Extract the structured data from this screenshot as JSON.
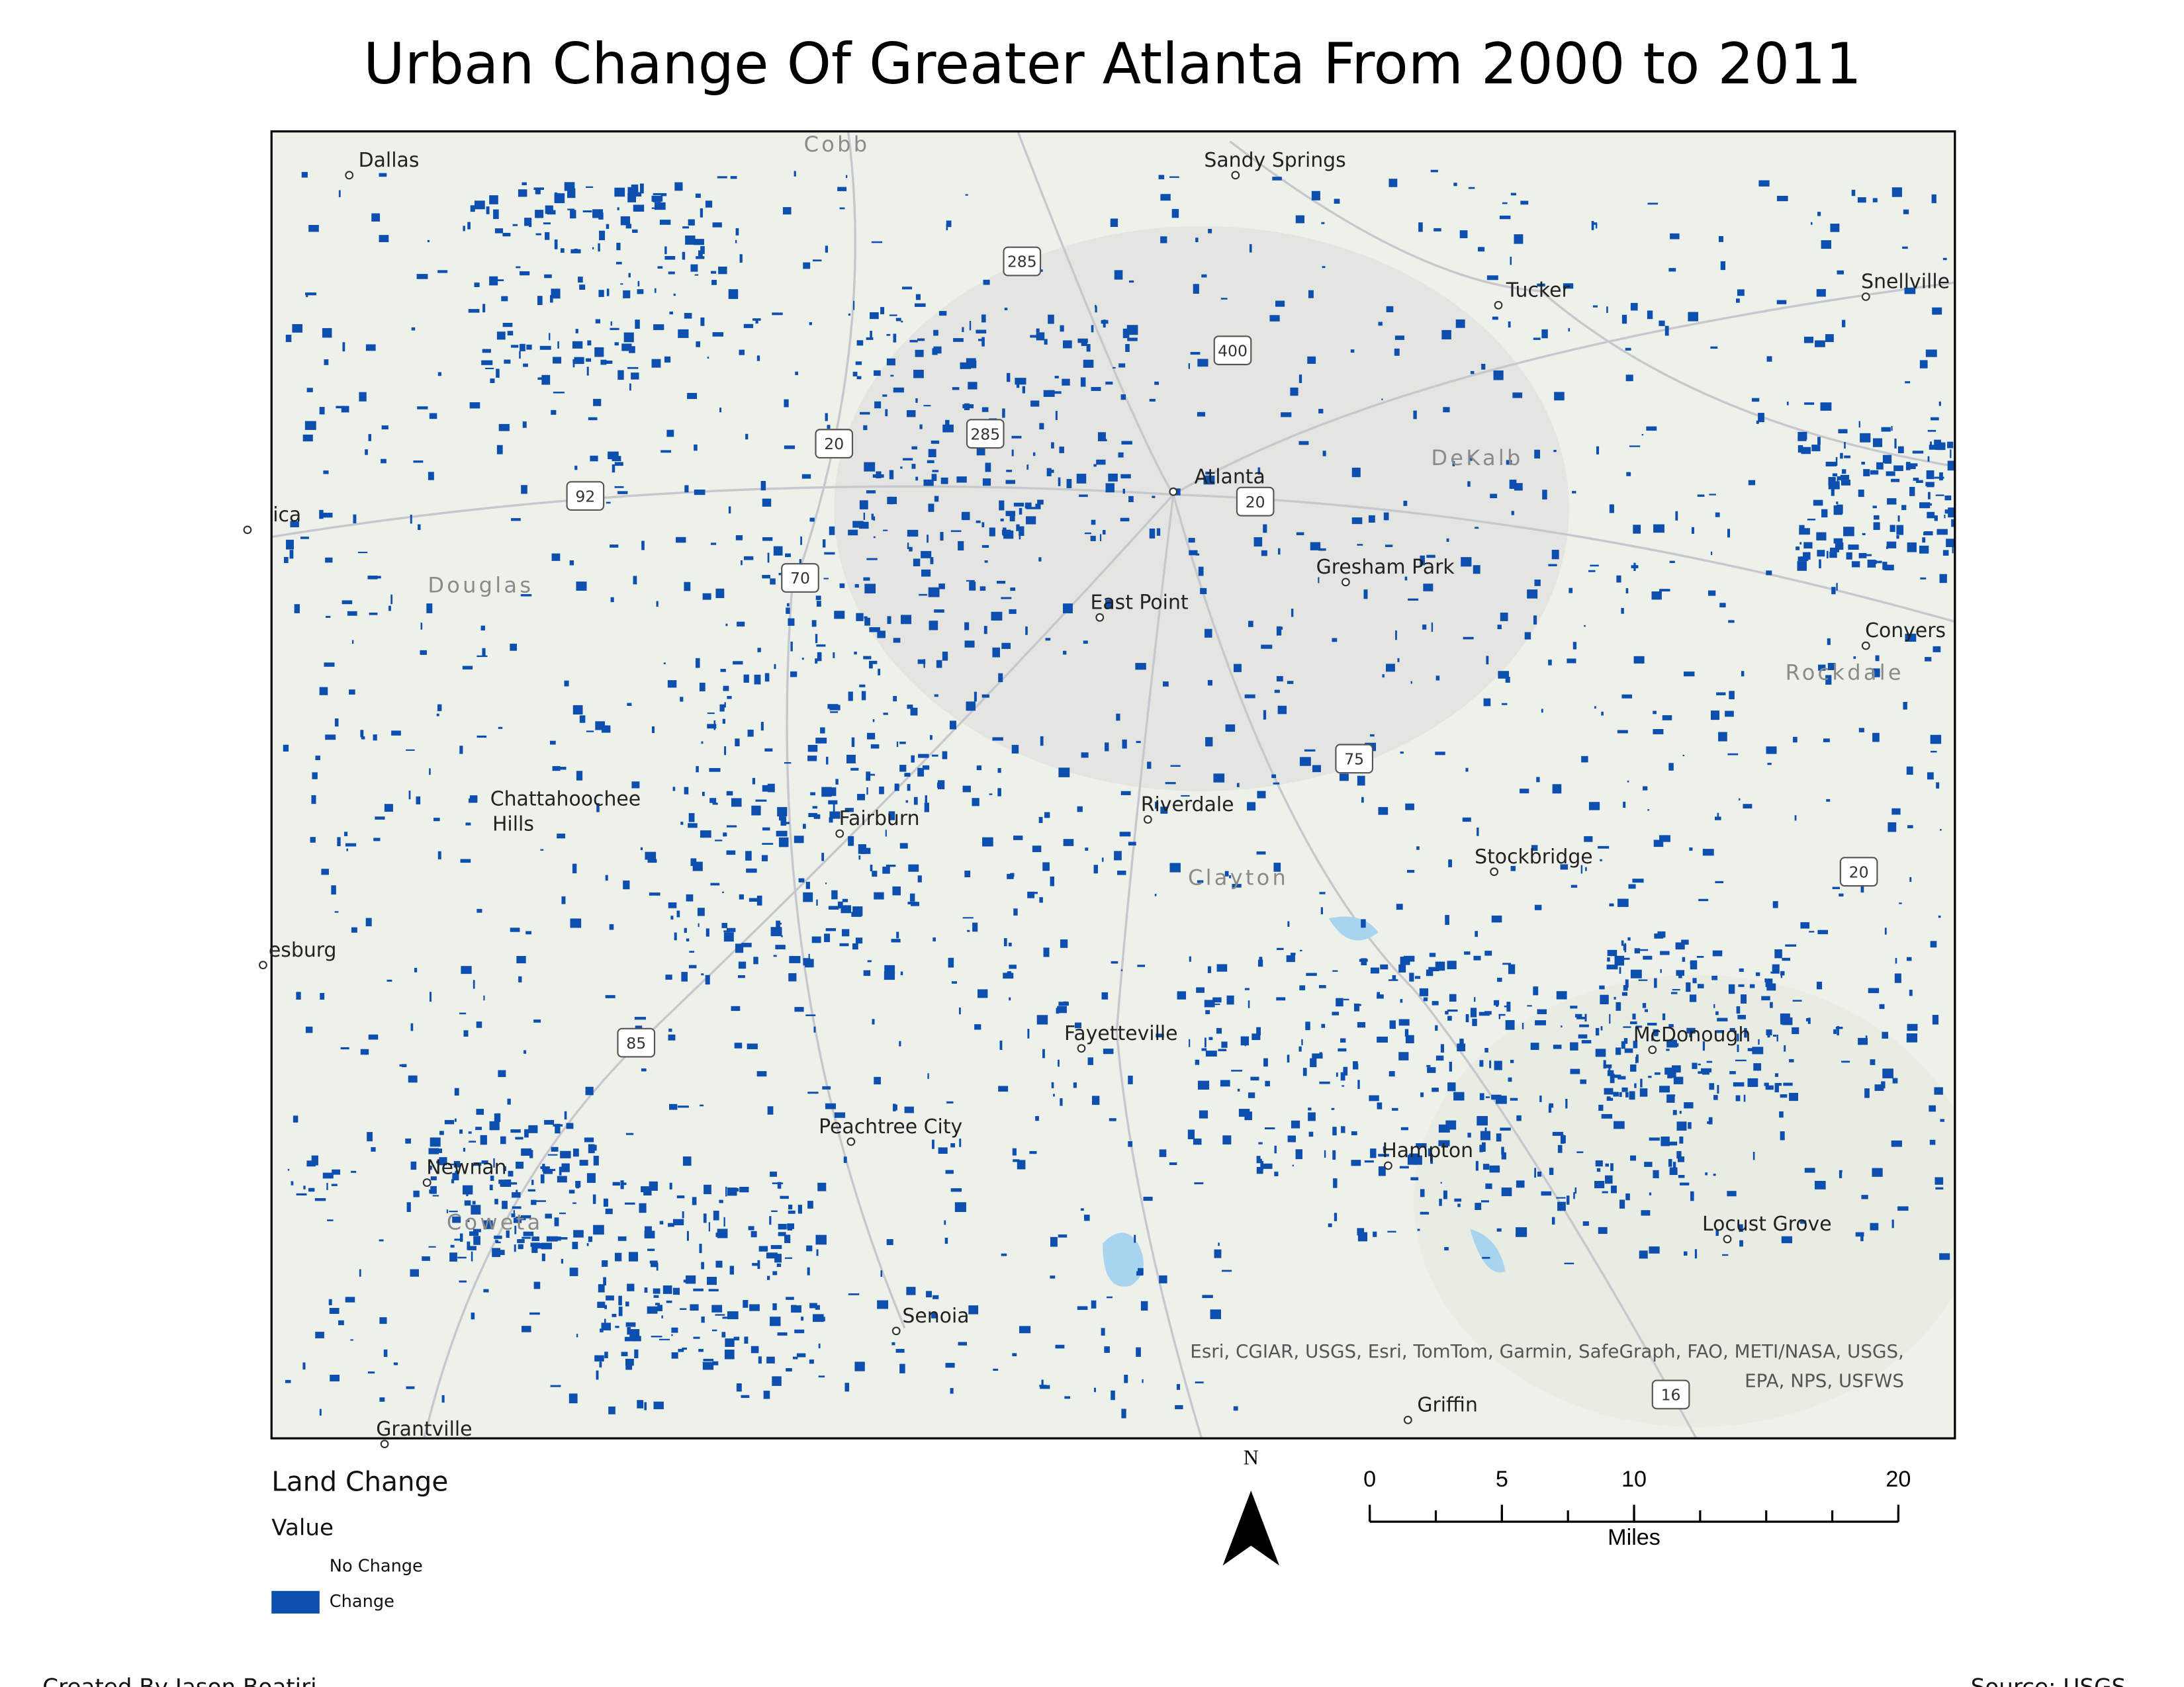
{
  "title": "Urban Change Of Greater Atlanta From 2000 to 2011",
  "map": {
    "places": [
      "Dallas",
      "Sandy Springs",
      "Tucker",
      "Snellville",
      "Atlanta",
      "Gresham Park",
      "East Point",
      "Conyers",
      "Fairburn",
      "Riverdale",
      "Stockbridge",
      "esburg",
      "Fayetteville",
      "McDonough",
      "Peachtree City",
      "Hampton",
      "Newnan",
      "Locust Grove",
      "Senoia",
      "Griffin",
      "Grantville",
      "ica"
    ],
    "multiline_places": [
      [
        "Chattahoochee",
        "Hills"
      ]
    ],
    "counties": [
      "Cobb",
      "DeKalb",
      "Douglas",
      "Rockdale",
      "Clayton",
      "Coweta"
    ],
    "highway_shields": [
      "285",
      "400",
      "20",
      "285",
      "92",
      "20",
      "70",
      "75",
      "20",
      "85",
      "16"
    ],
    "attribution": [
      "Esri, CGIAR, USGS, Esri, TomTom, Garmin, SafeGraph, FAO, METI/NASA, USGS,",
      "EPA, NPS, USFWS"
    ]
  },
  "legend": {
    "title": "Land Change",
    "subtitle": "Value",
    "items": [
      {
        "label": "No Change",
        "color": "#ffffff"
      },
      {
        "label": "Change",
        "color": "#0d4fae"
      }
    ]
  },
  "north_arrow": {
    "label": "N"
  },
  "scale_bar": {
    "ticks": [
      0,
      5,
      10,
      20
    ],
    "unit": "Miles"
  },
  "footer": {
    "credit": "Created By Jason Boatjri",
    "source": "Source: USGS"
  }
}
